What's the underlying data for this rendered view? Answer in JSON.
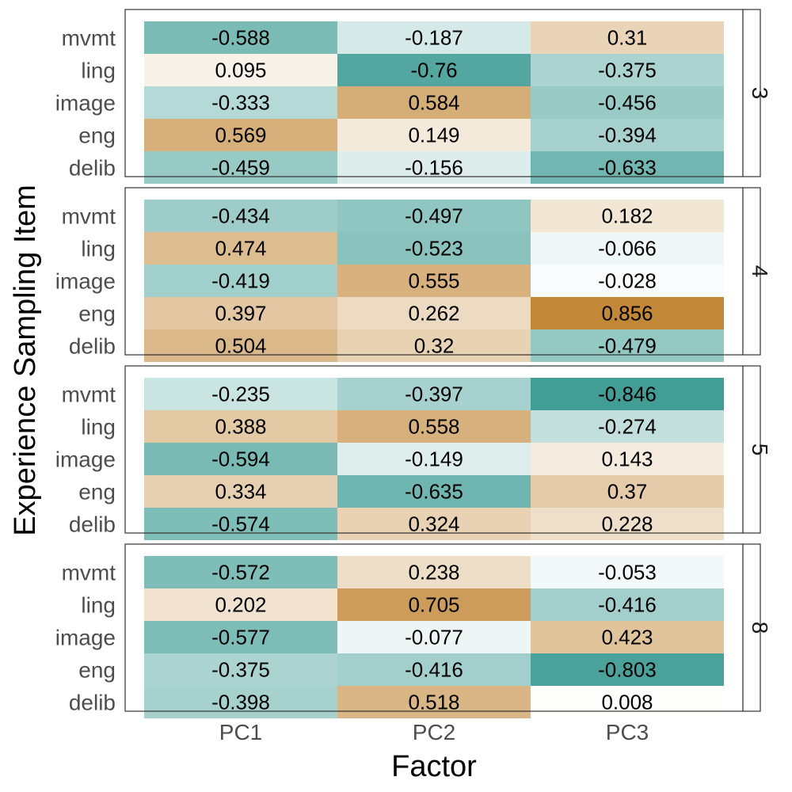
{
  "chart_data": {
    "type": "heatmap",
    "xlabel": "Factor",
    "ylabel": "Experience Sampling Item",
    "x_categories": [
      "PC1",
      "PC2",
      "PC3"
    ],
    "y_categories": [
      "mvmt",
      "ling",
      "image",
      "eng",
      "delib"
    ],
    "color_scale": {
      "negative": "#35978f",
      "zero": "#ffffff",
      "positive": "#bf812d",
      "limits": [
        -0.9,
        0.9
      ]
    },
    "panels": [
      {
        "label": "3",
        "values": [
          [
            -0.588,
            -0.187,
            0.31
          ],
          [
            0.095,
            -0.76,
            -0.375
          ],
          [
            -0.333,
            0.584,
            -0.456
          ],
          [
            0.569,
            0.149,
            -0.394
          ],
          [
            -0.459,
            -0.156,
            -0.633
          ]
        ]
      },
      {
        "label": "4",
        "values": [
          [
            -0.434,
            -0.497,
            0.182
          ],
          [
            0.474,
            -0.523,
            -0.066
          ],
          [
            -0.419,
            0.555,
            -0.028
          ],
          [
            0.397,
            0.262,
            0.856
          ],
          [
            0.504,
            0.32,
            -0.479
          ]
        ]
      },
      {
        "label": "5",
        "values": [
          [
            -0.235,
            -0.397,
            -0.846
          ],
          [
            0.388,
            0.558,
            -0.274
          ],
          [
            -0.594,
            -0.149,
            0.143
          ],
          [
            0.334,
            -0.635,
            0.37
          ],
          [
            -0.574,
            0.324,
            0.228
          ]
        ]
      },
      {
        "label": "8",
        "values": [
          [
            -0.572,
            0.238,
            -0.053
          ],
          [
            0.202,
            0.705,
            -0.416
          ],
          [
            -0.577,
            -0.077,
            0.423
          ],
          [
            -0.375,
            -0.416,
            -0.803
          ],
          [
            -0.398,
            0.518,
            0.008
          ]
        ]
      }
    ]
  }
}
